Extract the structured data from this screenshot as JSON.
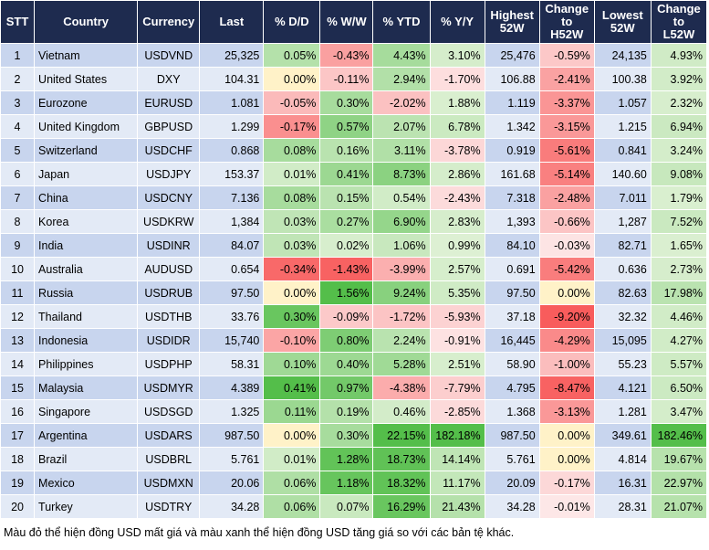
{
  "table": {
    "header": [
      [
        "STT"
      ],
      [
        "Country"
      ],
      [
        "Currency"
      ],
      [
        "Last"
      ],
      [
        "% D/D"
      ],
      [
        "% W/W"
      ],
      [
        "% YTD"
      ],
      [
        "% Y/Y"
      ],
      [
        "Highest",
        "52W"
      ],
      [
        "Change",
        "to",
        "H52W"
      ],
      [
        "Lowest",
        "52W"
      ],
      [
        "Change",
        "to",
        "L52W"
      ]
    ],
    "rows": [
      [
        "1",
        "Vietnam",
        "USDVND",
        "25,325",
        "0.05%",
        "-0.43%",
        "4.43%",
        "3.10%",
        "25,476",
        "-0.59%",
        "24,135",
        "4.93%"
      ],
      [
        "2",
        "United States",
        "DXY",
        "104.31",
        "0.00%",
        "-0.11%",
        "2.94%",
        "-1.70%",
        "106.88",
        "-2.41%",
        "100.38",
        "3.92%"
      ],
      [
        "3",
        "Eurozone",
        "EURUSD",
        "1.081",
        "-0.05%",
        "0.30%",
        "-2.02%",
        "1.88%",
        "1.119",
        "-3.37%",
        "1.057",
        "2.32%"
      ],
      [
        "4",
        "United Kingdom",
        "GBPUSD",
        "1.299",
        "-0.17%",
        "0.57%",
        "2.07%",
        "6.78%",
        "1.342",
        "-3.15%",
        "1.215",
        "6.94%"
      ],
      [
        "5",
        "Switzerland",
        "USDCHF",
        "0.868",
        "0.08%",
        "0.16%",
        "3.11%",
        "-3.78%",
        "0.919",
        "-5.61%",
        "0.841",
        "3.24%"
      ],
      [
        "6",
        "Japan",
        "USDJPY",
        "153.37",
        "0.01%",
        "0.41%",
        "8.73%",
        "2.86%",
        "161.68",
        "-5.14%",
        "140.60",
        "9.08%"
      ],
      [
        "7",
        "China",
        "USDCNY",
        "7.136",
        "0.08%",
        "0.15%",
        "0.54%",
        "-2.43%",
        "7.318",
        "-2.48%",
        "7.011",
        "1.79%"
      ],
      [
        "8",
        "Korea",
        "USDKRW",
        "1,384",
        "0.03%",
        "0.27%",
        "6.90%",
        "2.83%",
        "1,393",
        "-0.66%",
        "1,287",
        "7.52%"
      ],
      [
        "9",
        "India",
        "USDINR",
        "84.07",
        "0.03%",
        "0.02%",
        "1.06%",
        "0.99%",
        "84.10",
        "-0.03%",
        "82.71",
        "1.65%"
      ],
      [
        "10",
        "Australia",
        "AUDUSD",
        "0.654",
        "-0.34%",
        "-1.43%",
        "-3.99%",
        "2.57%",
        "0.691",
        "-5.42%",
        "0.636",
        "2.73%"
      ],
      [
        "11",
        "Russia",
        "USDRUB",
        "97.50",
        "0.00%",
        "1.56%",
        "9.24%",
        "5.35%",
        "97.50",
        "0.00%",
        "82.63",
        "17.98%"
      ],
      [
        "12",
        "Thailand",
        "USDTHB",
        "33.76",
        "0.30%",
        "-0.09%",
        "-1.72%",
        "-5.93%",
        "37.18",
        "-9.20%",
        "32.32",
        "4.46%"
      ],
      [
        "13",
        "Indonesia",
        "USDIDR",
        "15,740",
        "-0.10%",
        "0.80%",
        "2.24%",
        "-0.91%",
        "16,445",
        "-4.29%",
        "15,095",
        "4.27%"
      ],
      [
        "14",
        "Philippines",
        "USDPHP",
        "58.31",
        "0.10%",
        "0.40%",
        "5.28%",
        "2.51%",
        "58.90",
        "-1.00%",
        "55.23",
        "5.57%"
      ],
      [
        "15",
        "Malaysia",
        "USDMYR",
        "4.389",
        "0.41%",
        "0.97%",
        "-4.38%",
        "-7.79%",
        "4.795",
        "-8.47%",
        "4.121",
        "6.50%"
      ],
      [
        "16",
        "Singapore",
        "USDSGD",
        "1.325",
        "0.11%",
        "0.19%",
        "0.46%",
        "-2.85%",
        "1.368",
        "-3.13%",
        "1.281",
        "3.47%"
      ],
      [
        "17",
        "Argentina",
        "USDARS",
        "987.50",
        "0.00%",
        "0.30%",
        "22.15%",
        "182.18%",
        "987.50",
        "0.00%",
        "349.61",
        "182.46%"
      ],
      [
        "18",
        "Brazil",
        "USDBRL",
        "5.761",
        "0.01%",
        "1.28%",
        "18.73%",
        "14.14%",
        "5.761",
        "0.00%",
        "4.814",
        "19.67%"
      ],
      [
        "19",
        "Mexico",
        "USDMXN",
        "20.06",
        "0.06%",
        "1.18%",
        "18.32%",
        "11.17%",
        "20.09",
        "-0.17%",
        "16.31",
        "22.97%"
      ],
      [
        "20",
        "Turkey",
        "USDTRY",
        "34.28",
        "0.06%",
        "0.07%",
        "16.29%",
        "21.43%",
        "34.28",
        "-0.01%",
        "28.31",
        "21.07%"
      ]
    ]
  },
  "note": "Màu đỏ thể hiện đồng USD mất giá và màu xanh thể hiện đồng USD tăng giá so với các bản tệ khác."
}
